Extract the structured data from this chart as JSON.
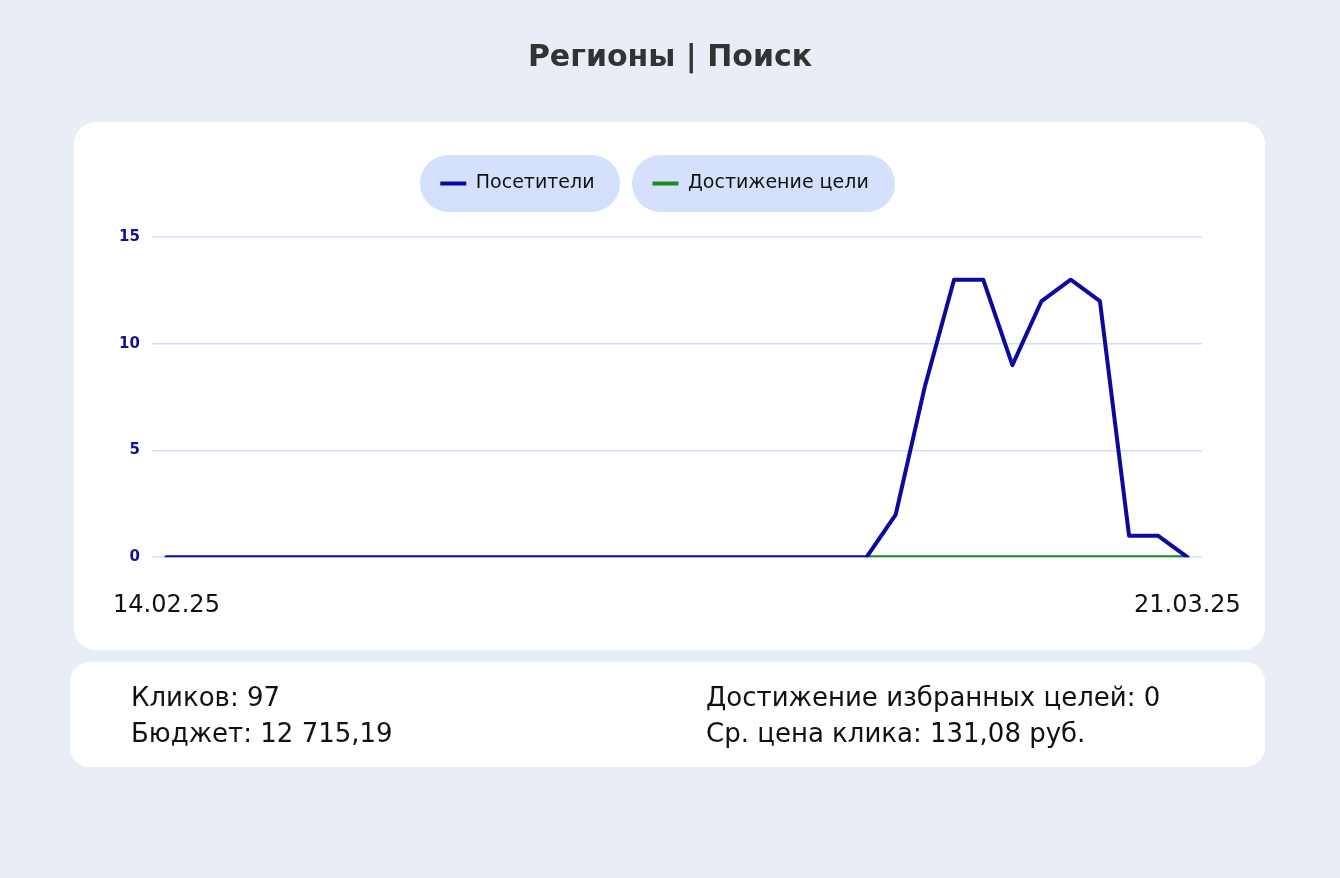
{
  "chart_data": {
    "type": "line",
    "title": "Регионы | Поиск",
    "categories": [
      "14.02.25",
      null,
      null,
      null,
      null,
      null,
      null,
      null,
      null,
      null,
      null,
      null,
      null,
      null,
      null,
      null,
      null,
      null,
      null,
      null,
      null,
      null,
      null,
      null,
      null,
      null,
      null,
      null,
      null,
      null,
      null,
      null,
      null,
      null,
      null,
      "21.03.25"
    ],
    "series": [
      {
        "name": "Посетители",
        "color": "#0a0a9e",
        "values": [
          0,
          0,
          0,
          0,
          0,
          0,
          0,
          0,
          0,
          0,
          0,
          0,
          0,
          0,
          0,
          0,
          0,
          0,
          0,
          0,
          0,
          0,
          0,
          0,
          0,
          2,
          8,
          13,
          13,
          9,
          12,
          13,
          12,
          1,
          1,
          0
        ]
      },
      {
        "name": "Достижение цели",
        "color": "#1c8a1c",
        "values": [
          null,
          null,
          null,
          null,
          null,
          null,
          null,
          null,
          null,
          null,
          null,
          null,
          null,
          null,
          null,
          null,
          null,
          null,
          null,
          null,
          null,
          null,
          null,
          null,
          0,
          0,
          0,
          0,
          0,
          0,
          0,
          0,
          0,
          0,
          0,
          0
        ]
      }
    ],
    "ylim": [
      0,
      15
    ],
    "yticks": [
      0,
      5,
      10,
      15
    ],
    "grid": "y",
    "legend": "top",
    "marker": "none",
    "annotations": [
      "Кликов: 97",
      "Достижение избранных целей: 0",
      "Бюджет: 12 715,19",
      "Ср. цена клика: 131,08 руб."
    ]
  }
}
